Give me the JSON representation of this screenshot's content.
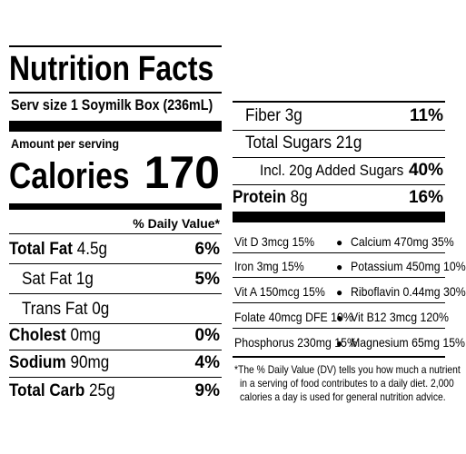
{
  "label": {
    "title": "Nutrition Facts",
    "serving": "Serv size  1 Soymilk Box (236mL)",
    "amount_per_serving": "Amount per serving",
    "calories_label": "Calories",
    "calories_value": "170",
    "daily_value_header": "% Daily Value*",
    "nutrients_left": [
      {
        "name": "Total Fat",
        "amount": "4.5g",
        "dv": "6%"
      },
      {
        "name": "Sat Fat",
        "amount": "1g",
        "dv": "5%"
      },
      {
        "name": "Trans Fat",
        "amount": "0g",
        "dv": ""
      },
      {
        "name": "Cholest",
        "amount": "0mg",
        "dv": "0%"
      },
      {
        "name": "Sodium",
        "amount": "90mg",
        "dv": "4%"
      },
      {
        "name": "Total Carb",
        "amount": "25g",
        "dv": "9%"
      }
    ],
    "nutrients_right": [
      {
        "name": "Fiber",
        "amount": "3g",
        "dv": "11%"
      },
      {
        "name": "Total Sugars",
        "amount": "21g",
        "dv": ""
      },
      {
        "name": "Incl. 20g Added Sugars",
        "amount": "",
        "dv": "40%"
      },
      {
        "name": "Protein",
        "amount": "8g",
        "dv": "16%"
      }
    ],
    "vitamins": [
      [
        "Vit D 3mcg 15%",
        "Calcium 470mg 35%"
      ],
      [
        "Iron 3mg 15%",
        "Potassium 450mg 10%"
      ],
      [
        "Vit A 150mcg 15%",
        "Riboflavin 0.44mg 30%"
      ],
      [
        "Folate 40mcg DFE 10%",
        "Vit B12 3mcg 120%"
      ],
      [
        "Phosphorus 230mg 15%",
        "Magnesium 65mg 15%"
      ]
    ],
    "footnote_1": "*The % Daily Value (DV) tells you how much a nutrient",
    "footnote_2": "in a serving of food contributes to a daily diet. 2,000",
    "footnote_3": "calories a day is used for general nutrition advice."
  }
}
